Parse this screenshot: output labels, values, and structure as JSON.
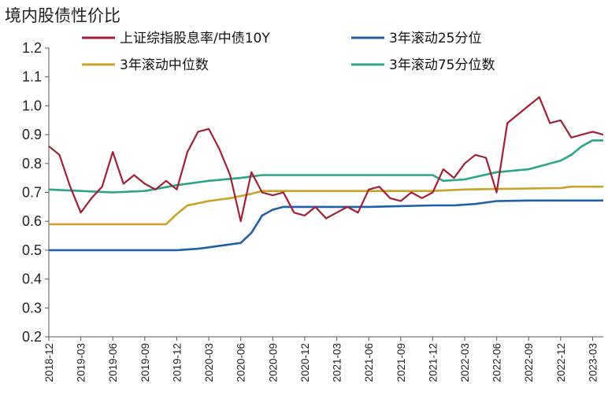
{
  "title": "境内股债性价比",
  "chart_data": {
    "type": "line",
    "title": "境内股债性价比",
    "xlabel": "",
    "ylabel": "",
    "ylim": [
      0.2,
      1.2
    ],
    "yticks": [
      "0.2",
      "0.3",
      "0.4",
      "0.5",
      "0.6",
      "0.7",
      "0.8",
      "0.9",
      "1.0",
      "1.1",
      "1.2"
    ],
    "x_tick_labels": [
      "2018-12",
      "2019-03",
      "2019-06",
      "2019-09",
      "2019-12",
      "2020-03",
      "2020-06",
      "2020-09",
      "2020-12",
      "2021-03",
      "2021-06",
      "2021-09",
      "2021-12",
      "2022-03",
      "2022-06",
      "2022-09",
      "2022-12",
      "2023-03"
    ],
    "x_range": [
      "2018-12",
      "2023-04"
    ],
    "grid": false,
    "legend_position": "top",
    "series": [
      {
        "name": "上证综指股息率/中债10Y",
        "color": "#A31F34",
        "x": [
          "2018-12",
          "2019-01",
          "2019-02",
          "2019-03",
          "2019-04",
          "2019-05",
          "2019-06",
          "2019-07",
          "2019-08",
          "2019-09",
          "2019-10",
          "2019-11",
          "2019-12",
          "2020-01",
          "2020-02",
          "2020-03",
          "2020-04",
          "2020-05",
          "2020-06",
          "2020-07",
          "2020-08",
          "2020-09",
          "2020-10",
          "2020-11",
          "2020-12",
          "2021-01",
          "2021-02",
          "2021-03",
          "2021-04",
          "2021-05",
          "2021-06",
          "2021-07",
          "2021-08",
          "2021-09",
          "2021-10",
          "2021-11",
          "2021-12",
          "2022-01",
          "2022-02",
          "2022-03",
          "2022-04",
          "2022-05",
          "2022-06",
          "2022-07",
          "2022-08",
          "2022-09",
          "2022-10",
          "2022-11",
          "2022-12",
          "2023-01",
          "2023-02",
          "2023-03",
          "2023-04"
        ],
        "values": [
          0.86,
          0.83,
          0.72,
          0.63,
          0.68,
          0.72,
          0.84,
          0.73,
          0.76,
          0.73,
          0.71,
          0.74,
          0.71,
          0.84,
          0.91,
          0.92,
          0.85,
          0.76,
          0.6,
          0.77,
          0.7,
          0.69,
          0.7,
          0.63,
          0.62,
          0.65,
          0.61,
          0.63,
          0.65,
          0.63,
          0.71,
          0.72,
          0.68,
          0.67,
          0.7,
          0.68,
          0.7,
          0.78,
          0.75,
          0.8,
          0.83,
          0.82,
          0.7,
          0.94,
          0.97,
          1.0,
          1.03,
          0.94,
          0.95,
          0.89,
          0.9,
          0.91,
          0.9
        ]
      },
      {
        "name": "3年滚动25分位",
        "color": "#1F5FA8",
        "x": [
          "2018-12",
          "2019-12",
          "2020-02",
          "2020-04",
          "2020-06",
          "2020-07",
          "2020-08",
          "2020-09",
          "2020-10",
          "2020-12",
          "2021-06",
          "2021-12",
          "2022-02",
          "2022-04",
          "2022-06",
          "2022-09",
          "2023-04"
        ],
        "values": [
          0.5,
          0.5,
          0.505,
          0.515,
          0.525,
          0.56,
          0.62,
          0.64,
          0.65,
          0.65,
          0.65,
          0.655,
          0.655,
          0.66,
          0.67,
          0.672,
          0.672
        ]
      },
      {
        "name": "3年滚动中位数",
        "color": "#C9A227",
        "x": [
          "2018-12",
          "2019-11",
          "2019-12",
          "2020-01",
          "2020-03",
          "2020-05",
          "2020-07",
          "2020-08",
          "2021-12",
          "2022-03",
          "2022-06",
          "2022-12",
          "2023-01",
          "2023-04"
        ],
        "values": [
          0.59,
          0.59,
          0.625,
          0.655,
          0.67,
          0.68,
          0.695,
          0.705,
          0.705,
          0.71,
          0.712,
          0.715,
          0.72,
          0.72
        ]
      },
      {
        "name": "3年滚动75分位数",
        "color": "#2BA58A",
        "x": [
          "2018-12",
          "2019-06",
          "2019-09",
          "2019-12",
          "2020-03",
          "2020-06",
          "2020-07",
          "2020-08",
          "2021-06",
          "2021-12",
          "2022-01",
          "2022-03",
          "2022-06",
          "2022-09",
          "2022-12",
          "2023-01",
          "2023-02",
          "2023-03",
          "2023-04"
        ],
        "values": [
          0.71,
          0.7,
          0.705,
          0.725,
          0.74,
          0.75,
          0.755,
          0.76,
          0.76,
          0.76,
          0.74,
          0.745,
          0.77,
          0.78,
          0.81,
          0.83,
          0.86,
          0.88,
          0.88
        ]
      }
    ]
  }
}
